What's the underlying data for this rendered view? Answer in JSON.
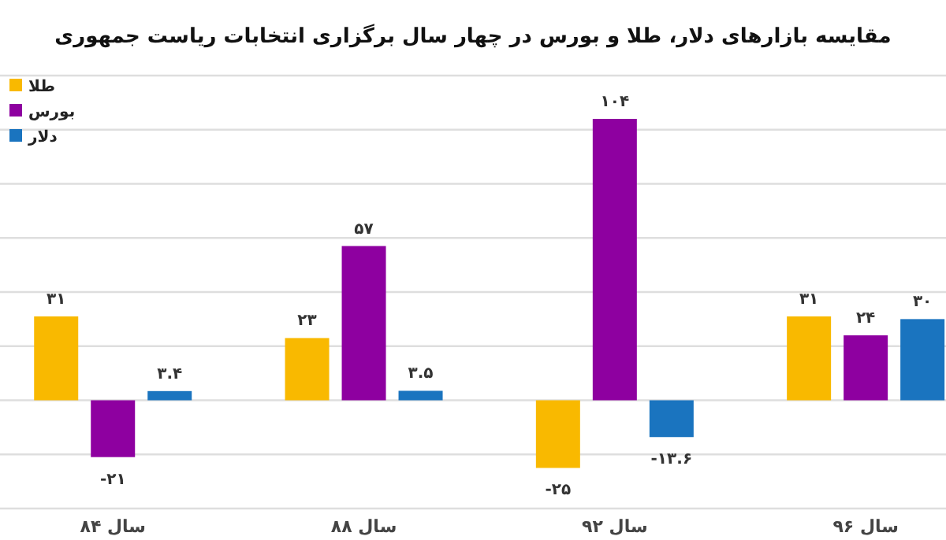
{
  "chart_data": {
    "type": "bar",
    "title": "مقایسه بازارهای دلار، طلا و بورس در چهار سال برگزاری انتخابات ریاست جمهوری",
    "categories": [
      "سال ۸۴",
      "سال ۸۸",
      "سال ۹۲",
      "سال ۹۶"
    ],
    "series": [
      {
        "name": "طلا",
        "color": "#f9b900",
        "values": [
          31,
          23,
          -25,
          31
        ],
        "value_labels": [
          "۳۱",
          "۲۳",
          "-۲۵",
          "۳۱"
        ]
      },
      {
        "name": "بورس",
        "color": "#8e00a0",
        "values": [
          -21,
          57,
          104,
          24
        ],
        "value_labels": [
          "-۲۱",
          "۵۷",
          "۱۰۴",
          "۲۴"
        ]
      },
      {
        "name": "دلار",
        "color": "#1a74bf",
        "values": [
          3.4,
          3.5,
          -13.6,
          30
        ],
        "value_labels": [
          "۳.۴",
          "۳.۵",
          "-۱۳.۶",
          "۳۰"
        ]
      }
    ],
    "ylim": [
      -40,
      120
    ],
    "yticks": [
      -40,
      -20,
      0,
      20,
      40,
      60,
      80,
      100,
      120
    ],
    "grid": "y",
    "tick_labels": "x",
    "legend": "top left"
  }
}
